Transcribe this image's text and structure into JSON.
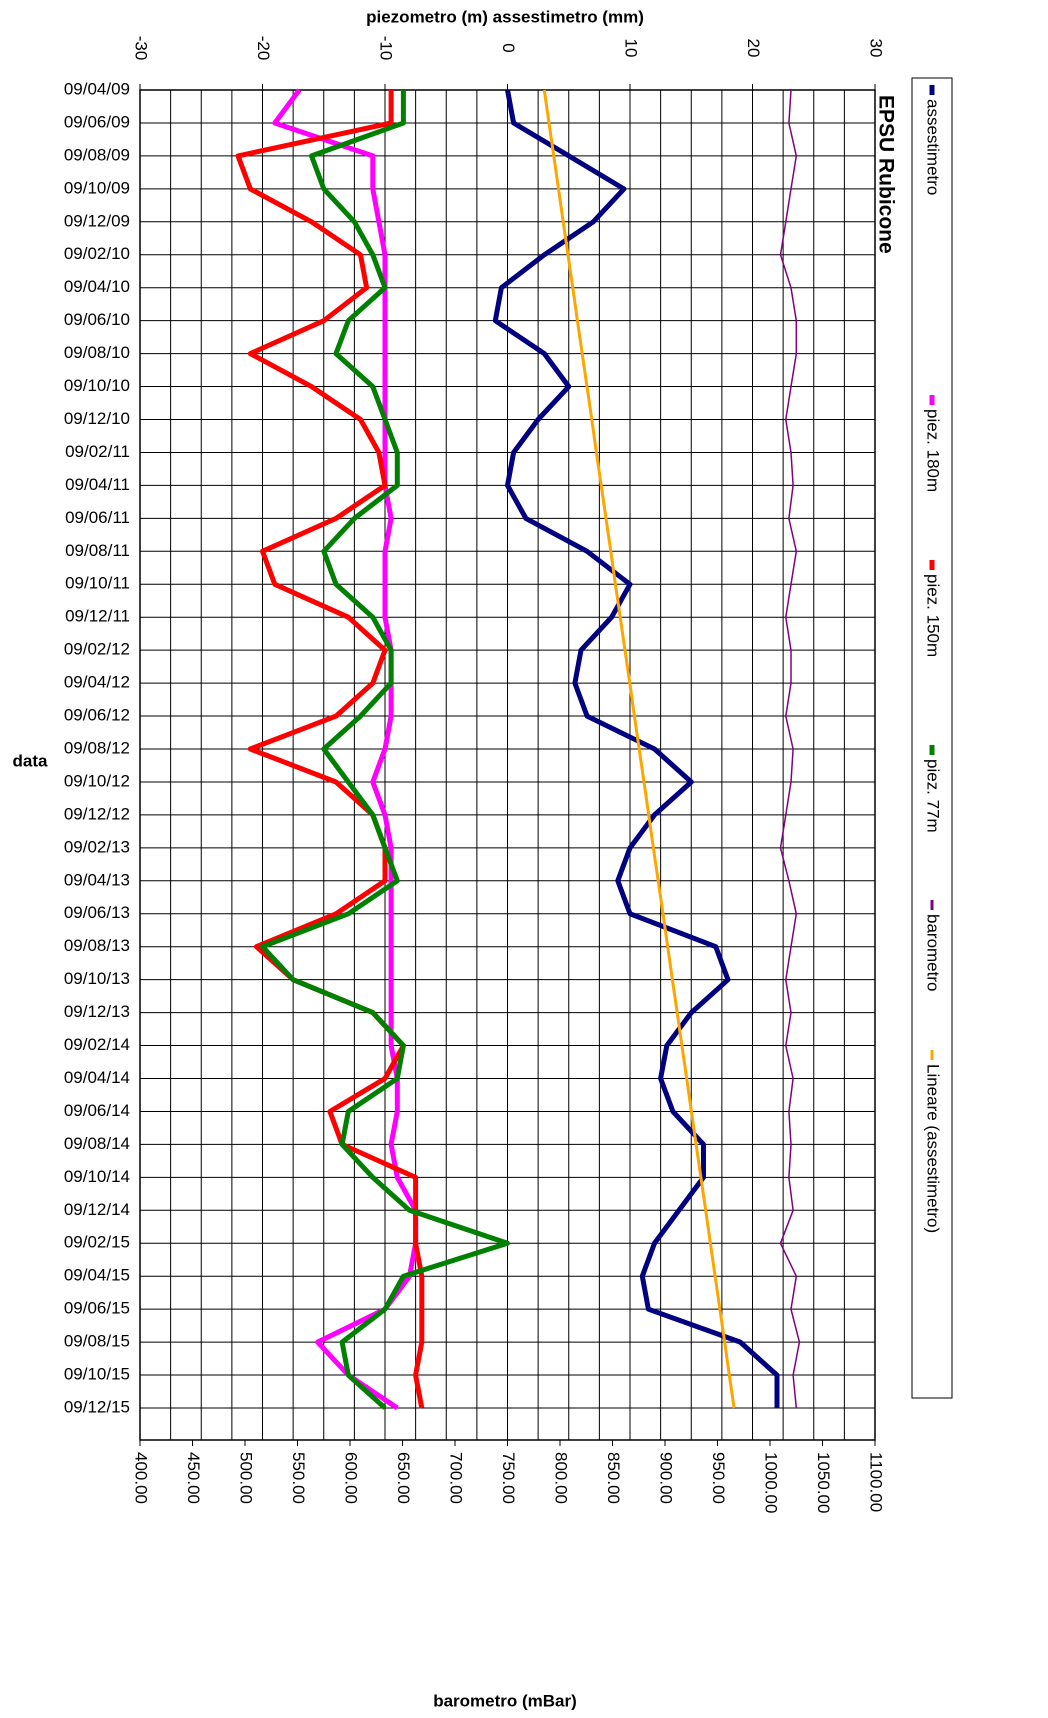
{
  "chart_data": {
    "type": "line",
    "title": "EPSU Rubicone",
    "x_label": "piezometro (m) assestimetro (mm)",
    "x2_label": "barometro (mBar)",
    "y_label": "data",
    "categories": [
      "09/04/09",
      "09/06/09",
      "09/08/09",
      "09/10/09",
      "09/12/09",
      "09/02/10",
      "09/04/10",
      "09/06/10",
      "09/08/10",
      "09/10/10",
      "09/12/10",
      "09/02/11",
      "09/04/11",
      "09/06/11",
      "09/08/11",
      "09/10/11",
      "09/12/11",
      "09/02/12",
      "09/04/12",
      "09/06/12",
      "09/08/12",
      "09/10/12",
      "09/12/12",
      "09/02/13",
      "09/04/13",
      "09/06/13",
      "09/08/13",
      "09/10/13",
      "09/12/13",
      "09/02/14",
      "09/04/14",
      "09/06/14",
      "09/08/14",
      "09/10/14",
      "09/12/14",
      "09/02/15",
      "09/04/15",
      "09/06/15",
      "09/08/15",
      "09/10/15",
      "09/12/15"
    ],
    "xlim": [
      -30,
      30
    ],
    "xticks": [
      -30,
      -20,
      -10,
      0,
      10,
      20,
      30
    ],
    "xgrid": [
      -30,
      -27.5,
      -25,
      -22.5,
      -20,
      -17.5,
      -15,
      -12.5,
      -10,
      -7.5,
      -5,
      -2.5,
      0,
      2.5,
      5,
      7.5,
      10,
      12.5,
      15,
      17.5,
      20,
      22.5,
      25,
      27.5,
      30
    ],
    "x2lim": [
      400,
      1100
    ],
    "x2ticks": [
      {
        "value": 400,
        "label": "400.00"
      },
      {
        "value": 450,
        "label": "450.00"
      },
      {
        "value": 500,
        "label": "500.00"
      },
      {
        "value": 550,
        "label": "550.00"
      },
      {
        "value": 600,
        "label": "600.00"
      },
      {
        "value": 650,
        "label": "650.00"
      },
      {
        "value": 700,
        "label": "700.00"
      },
      {
        "value": 750,
        "label": "750.00"
      },
      {
        "value": 800,
        "label": "800.00"
      },
      {
        "value": 850,
        "label": "850.00"
      },
      {
        "value": 900,
        "label": "900.00"
      },
      {
        "value": 950,
        "label": "950.00"
      },
      {
        "value": 1000,
        "label": "1000.00"
      },
      {
        "value": 1050,
        "label": "1050.00"
      },
      {
        "value": 1100,
        "label": "1100.00"
      }
    ],
    "grid": true,
    "legend": "right",
    "series": [
      {
        "name": "assestimetro",
        "color": "#000080",
        "width": 5,
        "values": [
          0,
          0.5,
          5,
          9.5,
          7,
          3,
          -0.5,
          -1,
          3,
          5,
          2.5,
          0.5,
          0,
          1.5,
          6.5,
          10,
          8.5,
          6,
          5.5,
          6.5,
          12,
          15,
          12,
          10,
          9,
          10,
          17,
          18,
          15,
          13,
          12.5,
          13.5,
          16,
          16,
          14,
          12,
          11,
          11.5,
          19,
          22,
          22
        ]
      },
      {
        "name": "piez. 180m",
        "color": "#ff00ff",
        "width": 5,
        "values": [
          -17,
          -19,
          -11,
          -11,
          -10.5,
          -10,
          -10,
          -10,
          -10,
          -10,
          -10,
          -10,
          -10,
          -9.5,
          -10,
          -10,
          -10,
          -9.5,
          -9.5,
          -9.5,
          -10,
          -11,
          -10,
          -9.5,
          -9.5,
          -9.5,
          -9.5,
          -9.5,
          -9.5,
          -9.5,
          -9,
          -9,
          -9.5,
          -9,
          -7.5,
          -7.5,
          -8,
          -10,
          -15.5,
          -13,
          -9
        ]
      },
      {
        "name": "piez. 150m",
        "color": "#ff0000",
        "width": 5,
        "values": [
          -9.5,
          -9.5,
          -22,
          -21,
          -16,
          -12,
          -11.5,
          -15,
          -21,
          -16,
          -12,
          -10.5,
          -10,
          -14,
          -20,
          -19,
          -13,
          -10,
          -11,
          -14,
          -21,
          -14,
          -11,
          -10,
          -10,
          -14,
          -20.5,
          -17.5,
          -11,
          -8.5,
          -10,
          -14.5,
          -13.5,
          -7.5,
          -7.5,
          -7.5,
          -7,
          -7,
          -7,
          -7.5,
          -7
        ]
      },
      {
        "name": "piez. 77m",
        "color": "#008000",
        "width": 5,
        "values": [
          -8.5,
          -8.5,
          -16,
          -15,
          -12.5,
          -11,
          -10,
          -13,
          -14,
          -11,
          -10,
          -9,
          -9,
          -12.5,
          -15,
          -14,
          -11,
          -9.5,
          -9.5,
          -12,
          -15,
          -13,
          -11,
          -10,
          -9,
          -13,
          -20,
          -17.5,
          -11,
          -8.5,
          -9,
          -13,
          -13.5,
          -11,
          -8,
          0,
          -8.5,
          -10,
          -13.5,
          -13,
          -10
        ]
      },
      {
        "name": "barometro",
        "color": "#800080",
        "width": 1.5,
        "axis": "x2",
        "values": [
          1020,
          1018,
          1025,
          1020,
          1015,
          1010,
          1020,
          1025,
          1025,
          1020,
          1015,
          1020,
          1022,
          1018,
          1025,
          1020,
          1015,
          1020,
          1020,
          1015,
          1022,
          1020,
          1015,
          1010,
          1018,
          1025,
          1020,
          1015,
          1020,
          1015,
          1022,
          1018,
          1020,
          1018,
          1022,
          1010,
          1025,
          1020,
          1028,
          1022,
          1025
        ]
      },
      {
        "name": "Lineare (assestimetro)",
        "color": "#ffa500",
        "width": 3,
        "values": [
          3,
          3.39,
          3.78,
          4.16,
          4.55,
          4.94,
          5.33,
          5.71,
          6.1,
          6.49,
          6.88,
          7.26,
          7.65,
          8.04,
          8.43,
          8.81,
          9.2,
          9.59,
          9.98,
          10.36,
          10.75,
          11.14,
          11.53,
          11.91,
          12.3,
          12.69,
          13.08,
          13.46,
          13.85,
          14.24,
          14.63,
          15.01,
          15.4,
          15.79,
          16.18,
          16.56,
          16.95,
          17.34,
          17.73,
          18.11,
          18.5
        ]
      }
    ]
  }
}
